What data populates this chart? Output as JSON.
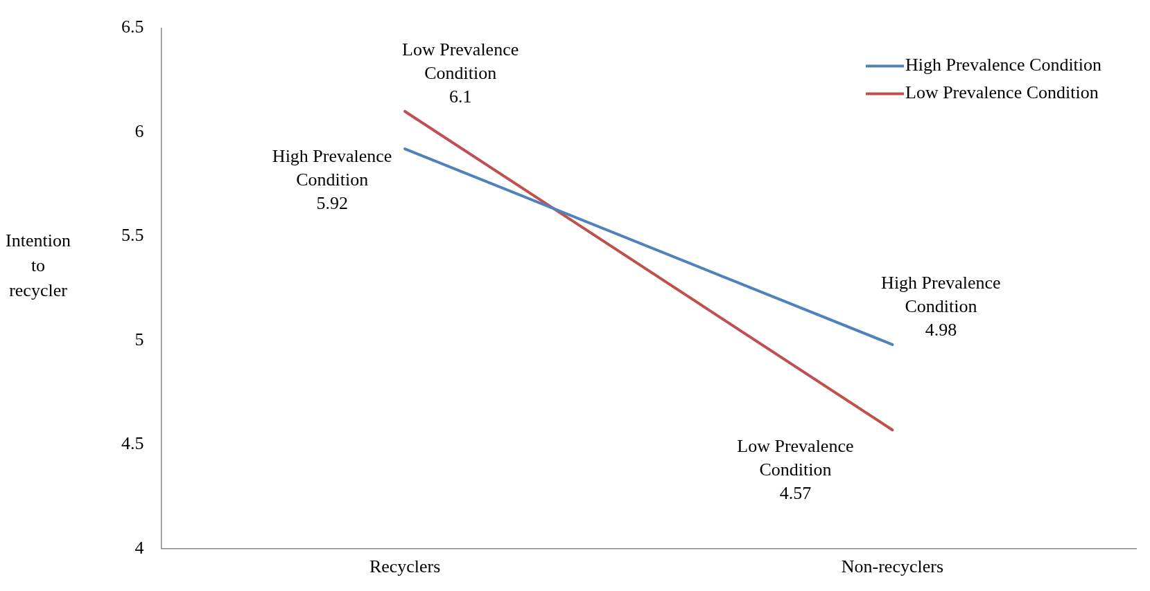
{
  "chart_data": {
    "type": "line",
    "ylabel": "Intention to recycler",
    "categories": [
      "Recyclers",
      "Non-recyclers"
    ],
    "series": [
      {
        "name": "High Prevalence Condition",
        "color": "#4f81bd",
        "values": [
          5.92,
          4.98
        ]
      },
      {
        "name": "Low Prevalence Condition",
        "color": "#c0504d",
        "values": [
          6.1,
          4.57
        ]
      }
    ],
    "annotations": [
      {
        "text": "Low Prevalence\nCondition\n6.1",
        "x": "Recyclers",
        "y": 6.1
      },
      {
        "text": "High Prevalence\nCondition\n5.92",
        "x": "Recyclers",
        "y": 5.92
      },
      {
        "text": "High Prevalence\nCondition\n4.98",
        "x": "Non-recyclers",
        "y": 4.98
      },
      {
        "text": "Low Prevalence\nCondition\n4.57",
        "x": "Non-recyclers",
        "y": 4.57
      }
    ],
    "ylim": [
      4,
      6.5
    ],
    "yticks": [
      4,
      4.5,
      5,
      5.5,
      6,
      6.5
    ],
    "grid": false,
    "legend": "top right",
    "marker": "none",
    "line_style": "solid"
  }
}
